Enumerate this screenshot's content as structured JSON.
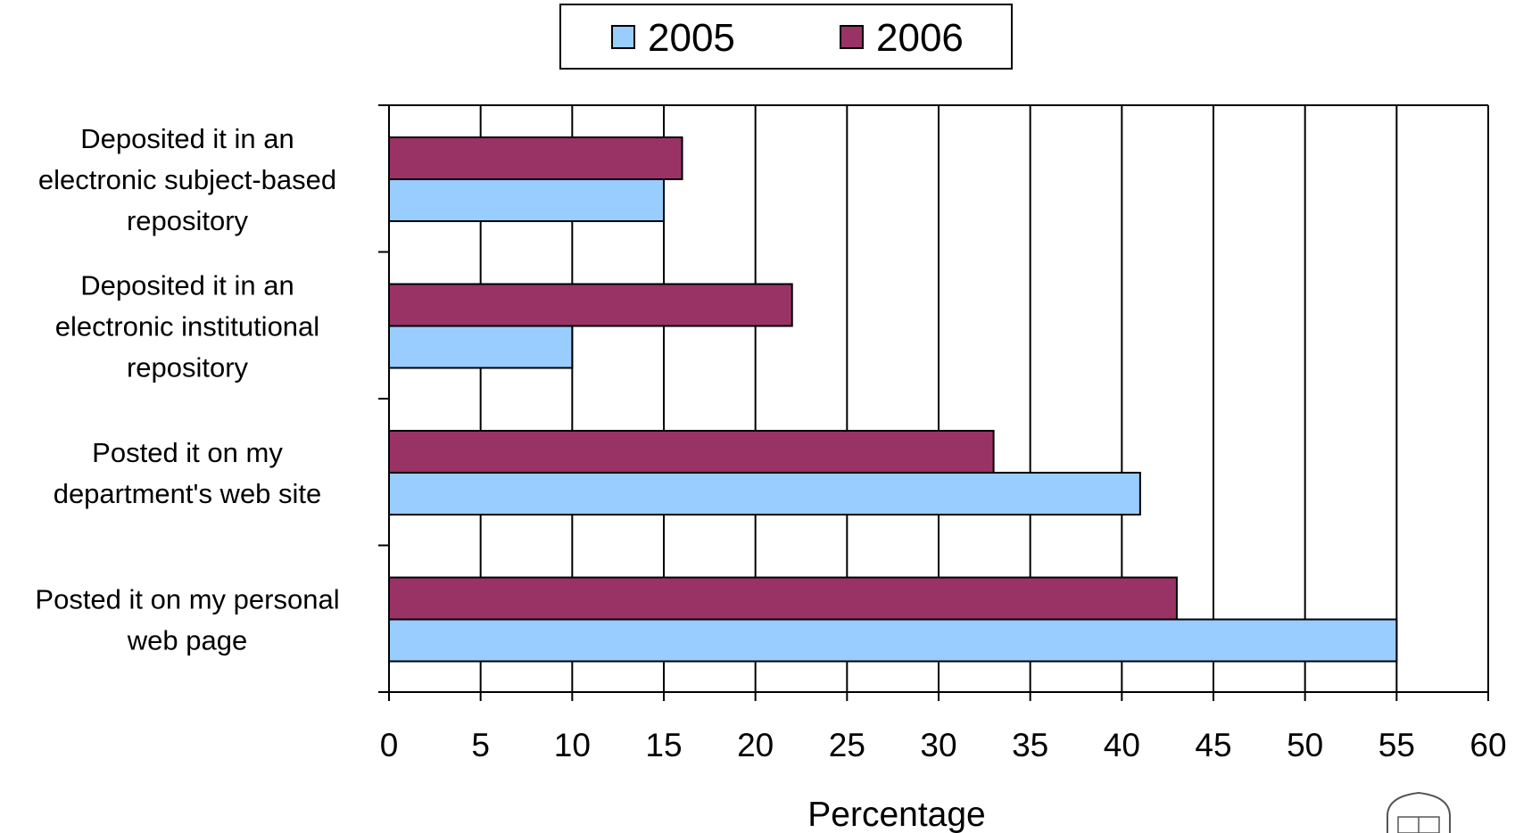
{
  "chart_data": {
    "type": "bar",
    "orientation": "horizontal",
    "categories": [
      [
        "Deposited it in an",
        "electronic subject-based",
        "repository"
      ],
      [
        "Deposited it in an",
        "electronic institutional",
        "repository"
      ],
      [
        "Posted it on my",
        "department's web site"
      ],
      [
        "Posted it on my personal",
        "web page"
      ]
    ],
    "series": [
      {
        "name": "2005",
        "color": "#99ccff",
        "values": [
          15,
          10,
          41,
          55
        ]
      },
      {
        "name": "2006",
        "color": "#993366",
        "values": [
          16,
          22,
          33,
          43
        ]
      }
    ],
    "xlabel": "Percentage",
    "ylabel": "",
    "xlim": [
      0,
      60
    ],
    "xticks": [
      "0",
      "5",
      "10",
      "15",
      "20",
      "25",
      "30",
      "35",
      "40",
      "45",
      "50",
      "55",
      "60"
    ],
    "grid": true,
    "legend": "top-center"
  }
}
